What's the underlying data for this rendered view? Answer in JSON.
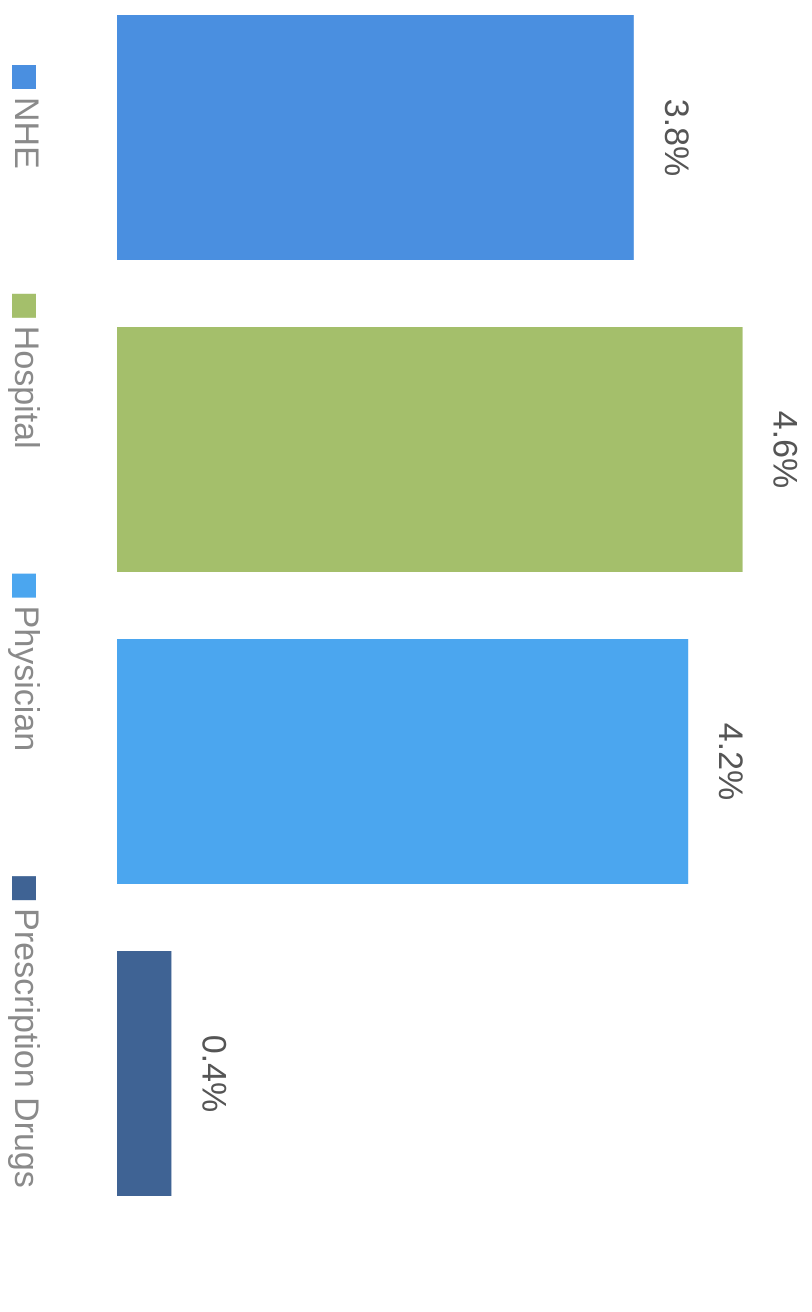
{
  "chart_data": {
    "type": "bar",
    "orientation": "horizontal",
    "categories": [
      "NHE",
      "Hospital",
      "Physician",
      "Prescription Drugs"
    ],
    "values": [
      3.8,
      4.6,
      4.2,
      0.4
    ],
    "value_labels": [
      "3.8%",
      "4.6%",
      "4.2%",
      "0.4%"
    ],
    "colors": [
      "#4a8fe0",
      "#a4bf6b",
      "#4ba6ef",
      "#3f6394"
    ],
    "ylim": [
      0,
      5
    ]
  }
}
